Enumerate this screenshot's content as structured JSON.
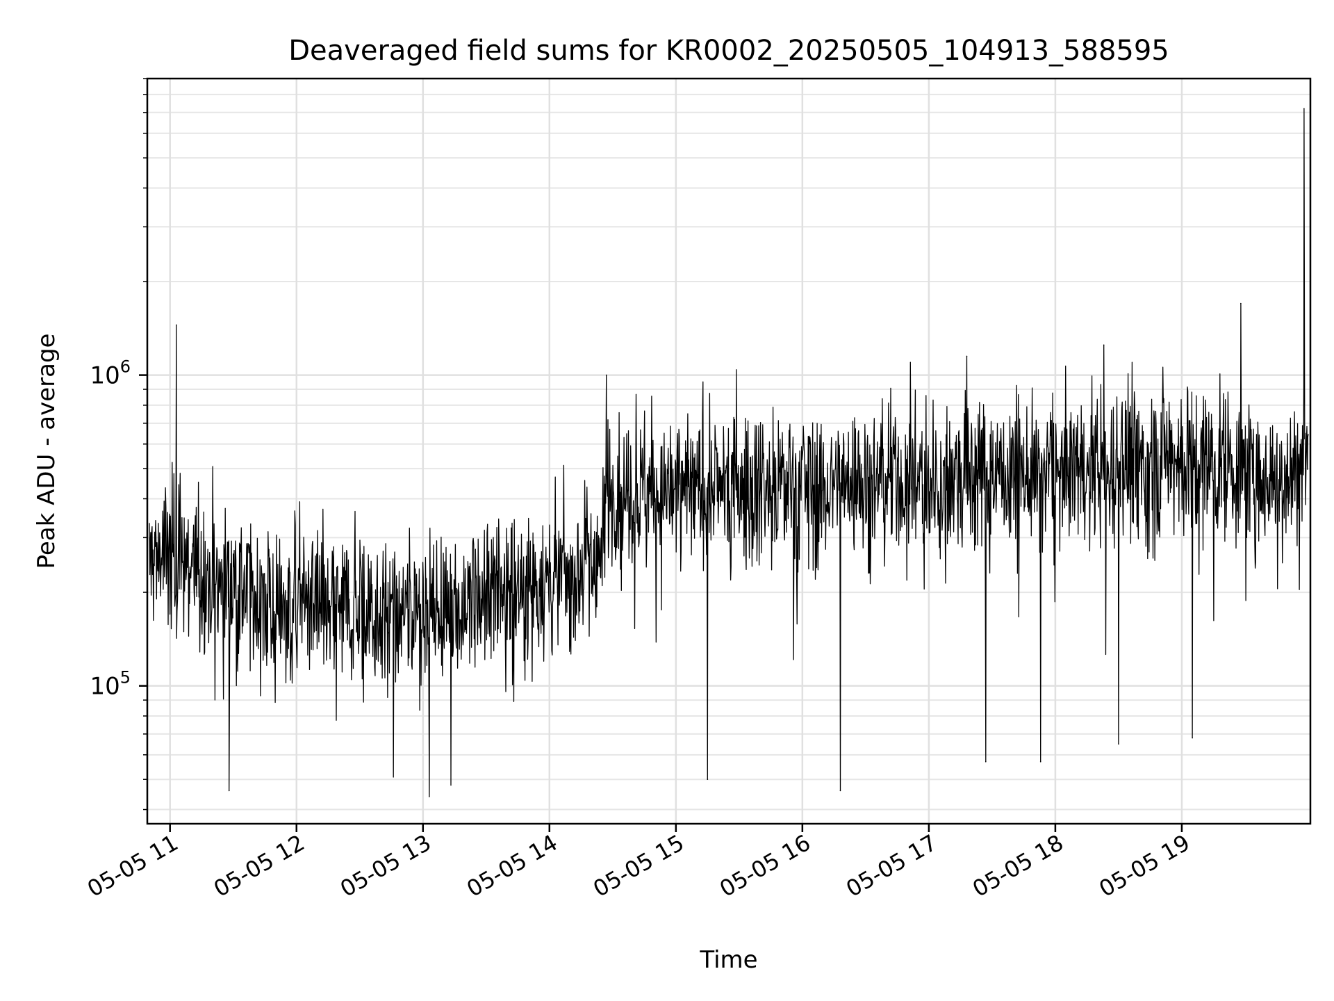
{
  "chart_data": {
    "type": "line",
    "title": "Deaveraged field sums for KR0002_20250505_104913_588595",
    "xlabel": "Time",
    "ylabel": "Peak ADU - average",
    "y_scale": "log",
    "ylim": [
      36000,
      9000000
    ],
    "xlim": [
      "2025-05-05 10:49:13",
      "2025-05-05 20:01:00"
    ],
    "x_ticks": [
      {
        "value": "2025-05-05 11:00",
        "label": "05-05 11"
      },
      {
        "value": "2025-05-05 12:00",
        "label": "05-05 12"
      },
      {
        "value": "2025-05-05 13:00",
        "label": "05-05 13"
      },
      {
        "value": "2025-05-05 14:00",
        "label": "05-05 14"
      },
      {
        "value": "2025-05-05 15:00",
        "label": "05-05 15"
      },
      {
        "value": "2025-05-05 16:00",
        "label": "05-05 16"
      },
      {
        "value": "2025-05-05 17:00",
        "label": "05-05 17"
      },
      {
        "value": "2025-05-05 18:00",
        "label": "05-05 18"
      },
      {
        "value": "2025-05-05 19:00",
        "label": "05-05 19"
      }
    ],
    "y_ticks": [
      {
        "value": 100000,
        "base": "10",
        "exp": "5"
      },
      {
        "value": 1000000,
        "base": "10",
        "exp": "6"
      }
    ],
    "grid": true,
    "series": [
      {
        "color": "#000000",
        "x_time": [
          "2025-05-05 10:50",
          "2025-05-05 11:00",
          "2025-05-05 11:15",
          "2025-05-05 11:30",
          "2025-05-05 11:45",
          "2025-05-05 12:00",
          "2025-05-05 12:15",
          "2025-05-05 12:30",
          "2025-05-05 12:45",
          "2025-05-05 13:00",
          "2025-05-05 13:15",
          "2025-05-05 13:30",
          "2025-05-05 13:45",
          "2025-05-05 14:00",
          "2025-05-05 14:15",
          "2025-05-05 14:25",
          "2025-05-05 14:27",
          "2025-05-05 14:45",
          "2025-05-05 15:00",
          "2025-05-05 15:15",
          "2025-05-05 15:30",
          "2025-05-05 15:45",
          "2025-05-05 16:00",
          "2025-05-05 16:15",
          "2025-05-05 16:30",
          "2025-05-05 16:45",
          "2025-05-05 17:00",
          "2025-05-05 17:15",
          "2025-05-05 17:30",
          "2025-05-05 17:45",
          "2025-05-05 18:00",
          "2025-05-05 18:15",
          "2025-05-05 18:30",
          "2025-05-05 18:45",
          "2025-05-05 19:00",
          "2025-05-05 19:15",
          "2025-05-05 19:30",
          "2025-05-05 19:45",
          "2025-05-05 20:00"
        ],
        "y_median": [
          250000,
          280000,
          230000,
          210000,
          180000,
          190000,
          185000,
          180000,
          170000,
          175000,
          185000,
          200000,
          210000,
          215000,
          240000,
          260000,
          430000,
          440000,
          440000,
          430000,
          440000,
          450000,
          440000,
          450000,
          450000,
          460000,
          470000,
          480000,
          470000,
          480000,
          500000,
          510000,
          520000,
          520000,
          530000,
          520000,
          500000,
          470000,
          550000
        ],
        "peaks": [
          {
            "x": "2025-05-05 11:03",
            "y": 1450000
          },
          {
            "x": "2025-05-05 14:27",
            "y": 1000000
          },
          {
            "x": "2025-05-05 17:18",
            "y": 1150000
          },
          {
            "x": "2025-05-05 18:23",
            "y": 1250000
          },
          {
            "x": "2025-05-05 19:28",
            "y": 1700000
          },
          {
            "x": "2025-05-05 19:58",
            "y": 7200000
          }
        ],
        "dips": [
          {
            "x": "2025-05-05 11:28",
            "y": 46000
          },
          {
            "x": "2025-05-05 13:03",
            "y": 44000
          },
          {
            "x": "2025-05-05 15:15",
            "y": 50000
          },
          {
            "x": "2025-05-05 16:18",
            "y": 46000
          },
          {
            "x": "2025-05-05 17:27",
            "y": 57000
          },
          {
            "x": "2025-05-05 17:53",
            "y": 57000
          },
          {
            "x": "2025-05-05 18:30",
            "y": 65000
          },
          {
            "x": "2025-05-05 19:05",
            "y": 68000
          }
        ]
      }
    ]
  }
}
